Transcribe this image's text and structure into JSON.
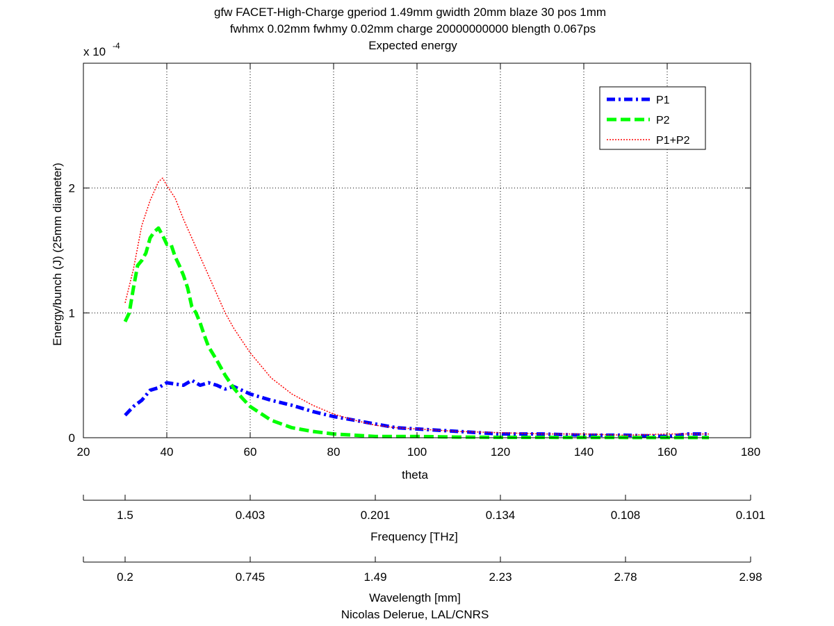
{
  "chart_data": {
    "type": "line",
    "title_lines": [
      "gfw FACET-High-Charge gperiod 1.49mm gwidth 20mm blaze 30 pos 1mm",
      "fwhmx 0.02mm fwhmy 0.02mm charge 20000000000 blength 0.067ps",
      "Expected energy"
    ],
    "xlabel": "theta",
    "ylabel": "Energy/bunch (J) (25mm diameter)",
    "y_exponent_label": "x 10",
    "y_exponent_power": "-4",
    "xlim": [
      20,
      180
    ],
    "ylim": [
      0,
      3
    ],
    "y_scale_note": "values in units of 1e-4 J",
    "x_ticks": [
      "20",
      "40",
      "60",
      "80",
      "100",
      "120",
      "140",
      "160",
      "180"
    ],
    "x_tick_values": [
      20,
      40,
      60,
      80,
      100,
      120,
      140,
      160,
      180
    ],
    "y_ticks": [
      "0",
      "1",
      "2"
    ],
    "y_tick_values": [
      0,
      1,
      2
    ],
    "grid": true,
    "legend_position": "top-right",
    "series": [
      {
        "name": "P1",
        "color": "#0000ff",
        "style": "dashdot",
        "x": [
          30,
          32,
          34,
          36,
          38,
          40,
          42,
          44,
          46,
          48,
          50,
          52,
          54,
          56,
          58,
          60,
          65,
          70,
          75,
          80,
          85,
          90,
          95,
          100,
          110,
          120,
          130,
          140,
          150,
          160,
          165,
          170
        ],
        "y": [
          0.18,
          0.25,
          0.3,
          0.38,
          0.4,
          0.44,
          0.43,
          0.42,
          0.46,
          0.42,
          0.44,
          0.42,
          0.39,
          0.41,
          0.38,
          0.35,
          0.3,
          0.26,
          0.21,
          0.17,
          0.14,
          0.11,
          0.08,
          0.07,
          0.05,
          0.03,
          0.03,
          0.02,
          0.02,
          0.01,
          0.03,
          0.03
        ]
      },
      {
        "name": "P2",
        "color": "#00ff00",
        "style": "dashed",
        "x": [
          30,
          31,
          32,
          33,
          34,
          35,
          36,
          37,
          38,
          39,
          40,
          41,
          42,
          43,
          44,
          45,
          46,
          47,
          48,
          49,
          50,
          52,
          54,
          56,
          58,
          60,
          65,
          70,
          75,
          80,
          85,
          90,
          100,
          110,
          120,
          140,
          160,
          170
        ],
        "y": [
          0.93,
          1.0,
          1.2,
          1.38,
          1.42,
          1.48,
          1.6,
          1.65,
          1.68,
          1.62,
          1.55,
          1.55,
          1.45,
          1.38,
          1.3,
          1.2,
          1.05,
          1.0,
          0.92,
          0.82,
          0.73,
          0.62,
          0.5,
          0.4,
          0.32,
          0.25,
          0.14,
          0.08,
          0.05,
          0.03,
          0.02,
          0.01,
          0.01,
          0.005,
          0.003,
          0.002,
          0.001,
          0.001
        ]
      },
      {
        "name": "P1+P2",
        "color": "#ff0000",
        "style": "dotted",
        "x": [
          30,
          32,
          34,
          36,
          38,
          39,
          40,
          42,
          44,
          46,
          48,
          50,
          52,
          54,
          56,
          58,
          60,
          65,
          70,
          75,
          80,
          85,
          90,
          95,
          100,
          110,
          120,
          130,
          140,
          150,
          160,
          170
        ],
        "y": [
          1.08,
          1.35,
          1.7,
          1.9,
          2.05,
          2.08,
          2.02,
          1.92,
          1.75,
          1.6,
          1.45,
          1.3,
          1.15,
          1.0,
          0.88,
          0.78,
          0.68,
          0.48,
          0.35,
          0.26,
          0.19,
          0.14,
          0.1,
          0.08,
          0.07,
          0.05,
          0.04,
          0.03,
          0.03,
          0.02,
          0.03,
          0.03
        ]
      }
    ],
    "secondary_axes": [
      {
        "label": "Frequency [THz]",
        "tick_labels": [
          "1.5",
          "0.403",
          "0.201",
          "0.134",
          "0.108",
          "0.101"
        ],
        "tick_positions_theta": [
          30,
          60,
          90,
          120,
          150,
          180
        ]
      },
      {
        "label": "Wavelength [mm]",
        "tick_labels": [
          "0.2",
          "0.745",
          "1.49",
          "2.23",
          "2.78",
          "2.98"
        ],
        "tick_positions_theta": [
          30,
          60,
          90,
          120,
          150,
          180
        ]
      }
    ],
    "credit": "Nicolas Delerue, LAL/CNRS"
  }
}
